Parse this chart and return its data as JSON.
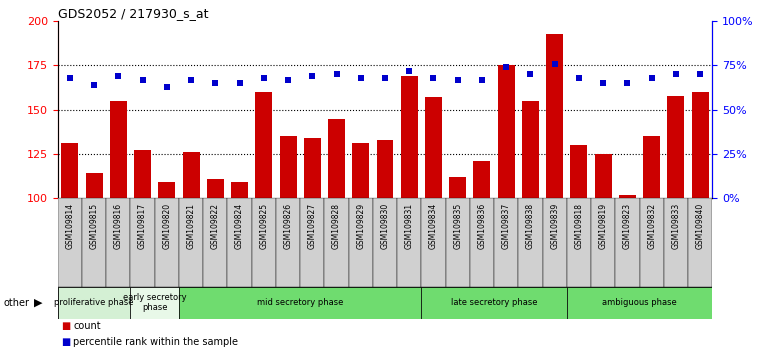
{
  "title": "GDS2052 / 217930_s_at",
  "samples": [
    "GSM109814",
    "GSM109815",
    "GSM109816",
    "GSM109817",
    "GSM109820",
    "GSM109821",
    "GSM109822",
    "GSM109824",
    "GSM109825",
    "GSM109826",
    "GSM109827",
    "GSM109828",
    "GSM109829",
    "GSM109830",
    "GSM109831",
    "GSM109834",
    "GSM109835",
    "GSM109836",
    "GSM109837",
    "GSM109838",
    "GSM109839",
    "GSM109818",
    "GSM109819",
    "GSM109823",
    "GSM109832",
    "GSM109833",
    "GSM109840"
  ],
  "counts": [
    131,
    114,
    155,
    127,
    109,
    126,
    111,
    109,
    160,
    135,
    134,
    145,
    131,
    133,
    169,
    157,
    112,
    121,
    175,
    155,
    193,
    130,
    125,
    102,
    135,
    158,
    160
  ],
  "percentiles": [
    68,
    64,
    69,
    67,
    63,
    67,
    65,
    65,
    68,
    67,
    69,
    70,
    68,
    68,
    72,
    68,
    67,
    67,
    74,
    70,
    76,
    68,
    65,
    65,
    68,
    70,
    70
  ],
  "phases": [
    {
      "name": "proliferative phase",
      "start": 0,
      "end": 3,
      "color": "#d4f0d4"
    },
    {
      "name": "early secretory\nphase",
      "start": 3,
      "end": 5,
      "color": "#e8f8e8"
    },
    {
      "name": "mid secretory phase",
      "start": 5,
      "end": 15,
      "color": "#6fdc6f"
    },
    {
      "name": "late secretory phase",
      "start": 15,
      "end": 21,
      "color": "#6fdc6f"
    },
    {
      "name": "ambiguous phase",
      "start": 21,
      "end": 27,
      "color": "#6fdc6f"
    }
  ],
  "ylim_left": [
    100,
    200
  ],
  "ylim_right": [
    0,
    100
  ],
  "yticks_left": [
    100,
    125,
    150,
    175,
    200
  ],
  "yticks_right": [
    0,
    25,
    50,
    75,
    100
  ],
  "bar_color": "#cc0000",
  "dot_color": "#0000cc",
  "grid_values": [
    125,
    150,
    175
  ],
  "bg_color": "#ffffff"
}
